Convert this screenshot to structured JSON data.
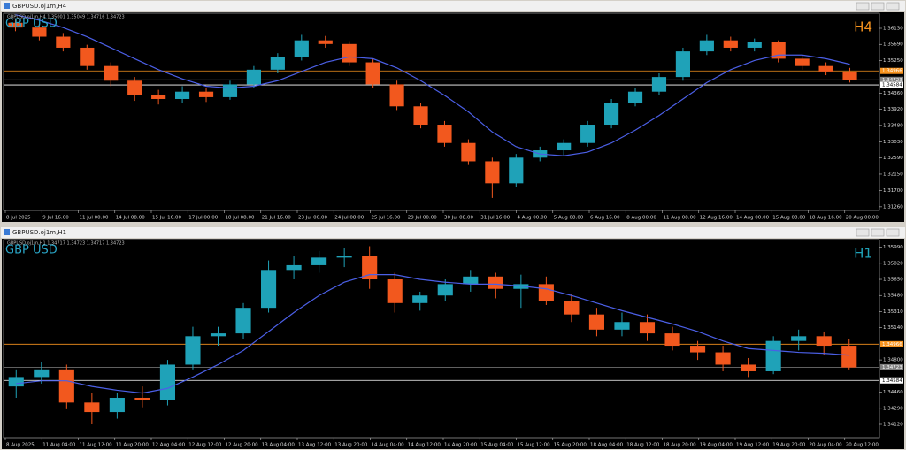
{
  "windows": [
    {
      "title": "GBPUSD.oj1m,H4",
      "info": "GBPUSD.oj1m,H4 1.35001 1.35049 1.34716 1.34723",
      "symbol": "GBP USD",
      "timeframe": "H4",
      "timeframe_color": "#f7931e",
      "chart": {
        "type": "candlestick",
        "up_color": "#1fa2b8",
        "down_color": "#f2581e",
        "ylim": [
          1.3116,
          1.3654
        ],
        "yticks": [
          {
            "value": 1.3126,
            "label": "1.31260"
          },
          {
            "value": 1.317,
            "label": "1.31700"
          },
          {
            "value": 1.3215,
            "label": "1.32150"
          },
          {
            "value": 1.3259,
            "label": "1.32590"
          },
          {
            "value": 1.3303,
            "label": "1.33030"
          },
          {
            "value": 1.3348,
            "label": "1.33480"
          },
          {
            "value": 1.3392,
            "label": "1.33920"
          },
          {
            "value": 1.3436,
            "label": "1.34360"
          },
          {
            "value": 1.3525,
            "label": "1.35250"
          },
          {
            "value": 1.3569,
            "label": "1.35690"
          },
          {
            "value": 1.3613,
            "label": "1.36130"
          }
        ],
        "xticks": [
          "8 Jul 2025",
          "9 Jul 16:00",
          "11 Jul 00:00",
          "14 Jul 08:00",
          "15 Jul 16:00",
          "17 Jul 00:00",
          "18 Jul 08:00",
          "21 Jul 16:00",
          "23 Jul 00:00",
          "24 Jul 08:00",
          "25 Jul 16:00",
          "29 Jul 00:00",
          "30 Jul 08:00",
          "31 Jul 16:00",
          "4 Aug 00:00",
          "5 Aug 08:00",
          "6 Aug 16:00",
          "8 Aug 00:00",
          "11 Aug 08:00",
          "12 Aug 16:00",
          "14 Aug 00:00",
          "15 Aug 08:00",
          "18 Aug 16:00",
          "20 Aug 00:00"
        ],
        "candles": [
          [
            1.3628,
            1.364,
            1.3605,
            1.3615
          ],
          [
            1.3615,
            1.3625,
            1.358,
            1.359
          ],
          [
            1.359,
            1.36,
            1.355,
            1.356
          ],
          [
            1.356,
            1.3568,
            1.35,
            1.351
          ],
          [
            1.351,
            1.352,
            1.3455,
            1.347
          ],
          [
            1.347,
            1.348,
            1.3415,
            1.343
          ],
          [
            1.343,
            1.3445,
            1.3405,
            1.342
          ],
          [
            1.342,
            1.3455,
            1.341,
            1.344
          ],
          [
            1.344,
            1.345,
            1.3412,
            1.3425
          ],
          [
            1.3425,
            1.347,
            1.3418,
            1.346
          ],
          [
            1.346,
            1.351,
            1.345,
            1.35
          ],
          [
            1.35,
            1.3545,
            1.349,
            1.3535
          ],
          [
            1.3535,
            1.3595,
            1.3525,
            1.358
          ],
          [
            1.358,
            1.3592,
            1.356,
            1.357
          ],
          [
            1.357,
            1.3578,
            1.351,
            1.352
          ],
          [
            1.352,
            1.353,
            1.345,
            1.346
          ],
          [
            1.346,
            1.347,
            1.339,
            1.34
          ],
          [
            1.34,
            1.341,
            1.334,
            1.335
          ],
          [
            1.335,
            1.336,
            1.329,
            1.33
          ],
          [
            1.33,
            1.331,
            1.324,
            1.325
          ],
          [
            1.325,
            1.326,
            1.315,
            1.319
          ],
          [
            1.319,
            1.327,
            1.318,
            1.326
          ],
          [
            1.326,
            1.329,
            1.325,
            1.328
          ],
          [
            1.328,
            1.331,
            1.3265,
            1.33
          ],
          [
            1.33,
            1.336,
            1.329,
            1.335
          ],
          [
            1.335,
            1.342,
            1.334,
            1.341
          ],
          [
            1.341,
            1.345,
            1.34,
            1.344
          ],
          [
            1.344,
            1.349,
            1.343,
            1.348
          ],
          [
            1.348,
            1.356,
            1.347,
            1.355
          ],
          [
            1.355,
            1.3595,
            1.354,
            1.358
          ],
          [
            1.358,
            1.359,
            1.355,
            1.356
          ],
          [
            1.356,
            1.3585,
            1.355,
            1.3575
          ],
          [
            1.3575,
            1.358,
            1.352,
            1.353
          ],
          [
            1.353,
            1.354,
            1.35,
            1.351
          ],
          [
            1.351,
            1.352,
            1.3485,
            1.3495
          ],
          [
            1.3495,
            1.3505,
            1.3465,
            1.3472
          ]
        ],
        "ma": {
          "color": "#4b5fe6",
          "values": [
            1.365,
            1.3635,
            1.3615,
            1.359,
            1.356,
            1.353,
            1.35,
            1.3475,
            1.3455,
            1.345,
            1.3455,
            1.347,
            1.3495,
            1.352,
            1.3535,
            1.353,
            1.3505,
            1.347,
            1.343,
            1.3385,
            1.333,
            1.329,
            1.327,
            1.3265,
            1.3275,
            1.33,
            1.3335,
            1.3375,
            1.342,
            1.3465,
            1.35,
            1.3525,
            1.354,
            1.354,
            1.353,
            1.3515
          ]
        },
        "levels": [
          {
            "value": 1.34966,
            "label": "1.34966",
            "color": "#f7931e"
          },
          {
            "value": 1.34723,
            "label": "1.34723",
            "color": "#808080"
          },
          {
            "value": 1.34584,
            "label": "1.34584",
            "color": "#ffffff"
          }
        ]
      }
    },
    {
      "title": "GBPUSD.oj1m,H1",
      "info": "GBPUSD.oj1m,H1 1.34717 1.34723 1.34717 1.34723",
      "symbol": "GBP USD",
      "timeframe": "H1",
      "timeframe_color": "#1fa2b8",
      "chart": {
        "type": "candlestick",
        "up_color": "#1fa2b8",
        "down_color": "#f2581e",
        "ylim": [
          1.3398,
          1.3607
        ],
        "yticks": [
          {
            "value": 1.3412,
            "label": "1.34120"
          },
          {
            "value": 1.3429,
            "label": "1.34290"
          },
          {
            "value": 1.3446,
            "label": "1.34460"
          },
          {
            "value": 1.348,
            "label": "1.34800"
          },
          {
            "value": 1.3514,
            "label": "1.35140"
          },
          {
            "value": 1.3531,
            "label": "1.35310"
          },
          {
            "value": 1.3548,
            "label": "1.35480"
          },
          {
            "value": 1.3565,
            "label": "1.35650"
          },
          {
            "value": 1.3582,
            "label": "1.35820"
          },
          {
            "value": 1.3599,
            "label": "1.35990"
          }
        ],
        "xticks": [
          "8 Aug 2025",
          "11 Aug 04:00",
          "11 Aug 12:00",
          "11 Aug 20:00",
          "12 Aug 04:00",
          "12 Aug 12:00",
          "12 Aug 20:00",
          "13 Aug 04:00",
          "13 Aug 12:00",
          "13 Aug 20:00",
          "14 Aug 04:00",
          "14 Aug 12:00",
          "14 Aug 20:00",
          "15 Aug 04:00",
          "15 Aug 12:00",
          "15 Aug 20:00",
          "18 Aug 04:00",
          "18 Aug 12:00",
          "18 Aug 20:00",
          "19 Aug 04:00",
          "19 Aug 12:00",
          "19 Aug 20:00",
          "20 Aug 04:00",
          "20 Aug 12:00"
        ],
        "candles": [
          [
            1.3452,
            1.347,
            1.344,
            1.3462
          ],
          [
            1.3462,
            1.3478,
            1.3455,
            1.347
          ],
          [
            1.347,
            1.3475,
            1.3428,
            1.3435
          ],
          [
            1.3435,
            1.3445,
            1.3412,
            1.3425
          ],
          [
            1.3425,
            1.3445,
            1.3418,
            1.344
          ],
          [
            1.344,
            1.3452,
            1.343,
            1.3438
          ],
          [
            1.3438,
            1.348,
            1.3432,
            1.3475
          ],
          [
            1.3475,
            1.3515,
            1.347,
            1.3505
          ],
          [
            1.3505,
            1.3515,
            1.3495,
            1.3508
          ],
          [
            1.3508,
            1.354,
            1.3502,
            1.3535
          ],
          [
            1.3535,
            1.3585,
            1.353,
            1.3575
          ],
          [
            1.3575,
            1.359,
            1.3565,
            1.358
          ],
          [
            1.358,
            1.3595,
            1.3572,
            1.3588
          ],
          [
            1.3588,
            1.3598,
            1.3578,
            1.359
          ],
          [
            1.359,
            1.36,
            1.3555,
            1.3565
          ],
          [
            1.3565,
            1.3572,
            1.353,
            1.354
          ],
          [
            1.354,
            1.3552,
            1.3532,
            1.3548
          ],
          [
            1.3548,
            1.3565,
            1.3542,
            1.356
          ],
          [
            1.356,
            1.3575,
            1.3552,
            1.3568
          ],
          [
            1.3568,
            1.3572,
            1.3545,
            1.3555
          ],
          [
            1.3555,
            1.357,
            1.3535,
            1.356
          ],
          [
            1.356,
            1.3568,
            1.3538,
            1.3542
          ],
          [
            1.3542,
            1.355,
            1.352,
            1.3528
          ],
          [
            1.3528,
            1.3535,
            1.3505,
            1.3512
          ],
          [
            1.3512,
            1.353,
            1.3505,
            1.352
          ],
          [
            1.352,
            1.3528,
            1.35,
            1.3508
          ],
          [
            1.3508,
            1.3515,
            1.349,
            1.3495
          ],
          [
            1.3495,
            1.35,
            1.348,
            1.3488
          ],
          [
            1.3488,
            1.3495,
            1.3468,
            1.3475
          ],
          [
            1.3475,
            1.3482,
            1.3462,
            1.3468
          ],
          [
            1.3468,
            1.3505,
            1.3465,
            1.35
          ],
          [
            1.35,
            1.3512,
            1.349,
            1.3505
          ],
          [
            1.3505,
            1.351,
            1.3485,
            1.3495
          ],
          [
            1.3495,
            1.3502,
            1.347,
            1.3472
          ]
        ],
        "ma": {
          "color": "#4b5fe6",
          "values": [
            1.3455,
            1.3458,
            1.3458,
            1.3452,
            1.3448,
            1.3445,
            1.345,
            1.3462,
            1.3475,
            1.349,
            1.351,
            1.353,
            1.3548,
            1.3562,
            1.357,
            1.357,
            1.3565,
            1.3562,
            1.356,
            1.356,
            1.3558,
            1.3555,
            1.3548,
            1.354,
            1.3532,
            1.3525,
            1.3518,
            1.351,
            1.35,
            1.3492,
            1.349,
            1.3488,
            1.3487,
            1.3485
          ]
        },
        "levels": [
          {
            "value": 1.34966,
            "label": "1.34966",
            "color": "#f7931e"
          },
          {
            "value": 1.34723,
            "label": "1.34723",
            "color": "#808080"
          },
          {
            "value": 1.34584,
            "label": "1.34584",
            "color": "#ffffff"
          }
        ]
      }
    }
  ]
}
